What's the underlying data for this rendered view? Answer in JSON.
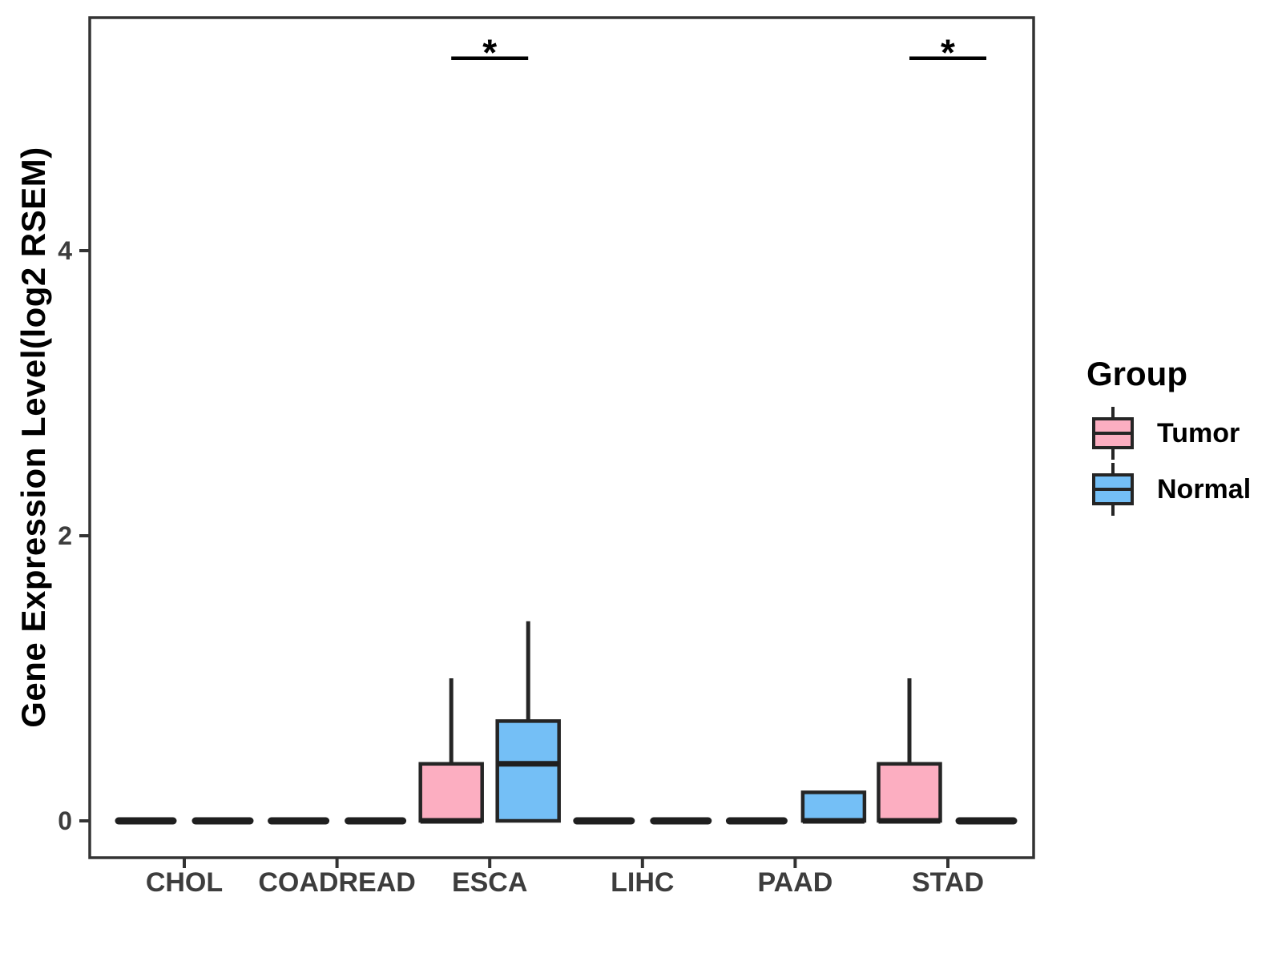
{
  "chart_data": {
    "type": "boxplot",
    "title": "",
    "xlabel": "",
    "ylabel": "Gene Expression Level(log2 RSEM)",
    "y_ticks": [
      0,
      2,
      4
    ],
    "ylim": [
      -0.26,
      5.63
    ],
    "grid": "off",
    "categories": [
      "CHOL",
      "COADREAD",
      "ESCA",
      "LIHC",
      "PAAD",
      "STAD"
    ],
    "series": [
      {
        "name": "Tumor",
        "color": "#FCAEC1",
        "boxes": [
          {
            "category": "CHOL",
            "low": 0,
            "q1": 0,
            "median": 0,
            "q3": 0,
            "high": 0
          },
          {
            "category": "COADREAD",
            "low": 0,
            "q1": 0,
            "median": 0,
            "q3": 0,
            "high": 0
          },
          {
            "category": "ESCA",
            "low": 0,
            "q1": 0,
            "median": 0,
            "q3": 0.4,
            "high": 1.0
          },
          {
            "category": "LIHC",
            "low": 0,
            "q1": 0,
            "median": 0,
            "q3": 0,
            "high": 0
          },
          {
            "category": "PAAD",
            "low": 0,
            "q1": 0,
            "median": 0,
            "q3": 0,
            "high": 0
          },
          {
            "category": "STAD",
            "low": 0,
            "q1": 0,
            "median": 0,
            "q3": 0.4,
            "high": 1.0
          }
        ]
      },
      {
        "name": "Normal",
        "color": "#74BFF6",
        "boxes": [
          {
            "category": "CHOL",
            "low": 0,
            "q1": 0,
            "median": 0,
            "q3": 0,
            "high": 0
          },
          {
            "category": "COADREAD",
            "low": 0,
            "q1": 0,
            "median": 0,
            "q3": 0,
            "high": 0
          },
          {
            "category": "ESCA",
            "low": 0,
            "q1": 0,
            "median": 0.4,
            "q3": 0.7,
            "high": 1.4
          },
          {
            "category": "LIHC",
            "low": 0,
            "q1": 0,
            "median": 0,
            "q3": 0,
            "high": 0
          },
          {
            "category": "PAAD",
            "low": 0,
            "q1": 0,
            "median": 0,
            "q3": 0.2,
            "high": 0.2
          },
          {
            "category": "STAD",
            "low": 0,
            "q1": 0,
            "median": 0,
            "q3": 0,
            "high": 0
          }
        ]
      }
    ],
    "significance": [
      {
        "category": "ESCA",
        "label": "*",
        "bar_y": 5.35
      },
      {
        "category": "STAD",
        "label": "*",
        "bar_y": 5.35
      }
    ],
    "legend": {
      "title": "Group",
      "position": "right",
      "items": [
        {
          "label": "Tumor",
          "color": "#FCAEC1"
        },
        {
          "label": "Normal",
          "color": "#74BFF6"
        }
      ]
    },
    "colors": {
      "tumor_fill": "#FCAEC1",
      "normal_fill": "#74BFF6",
      "box_outline": "#252525",
      "flat_line": "#1F1F1F",
      "panel_border": "#333333",
      "axis_text": "#3D3D3D",
      "annotation": "#000000",
      "background": "#FFFFFF"
    }
  }
}
